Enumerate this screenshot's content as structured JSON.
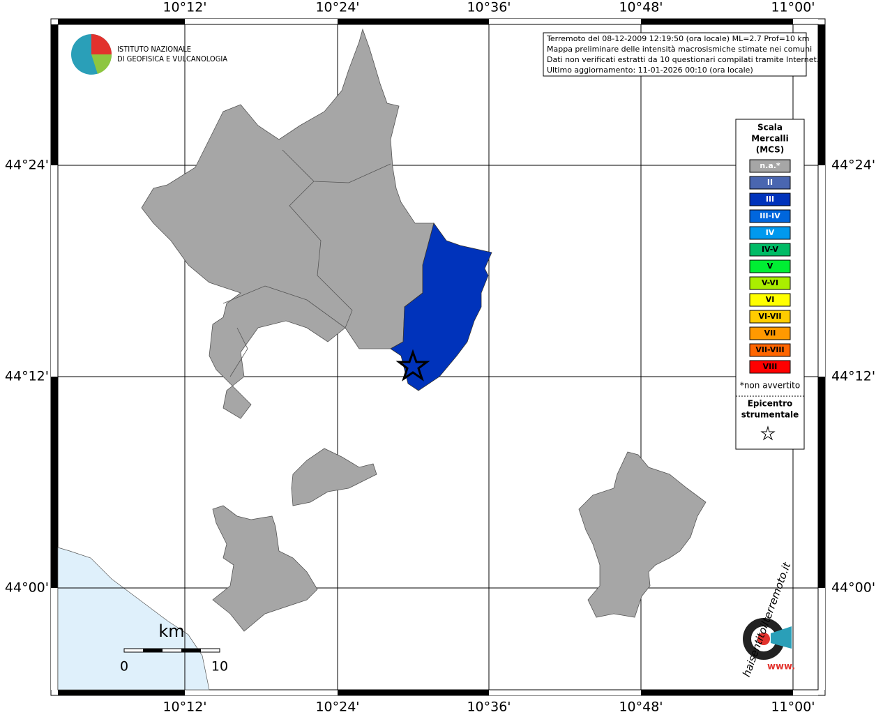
{
  "header": {
    "lines": [
      "Terremoto del 08-12-2009 12:19:50 (ora locale) ML=2.7 Prof=10 km",
      "Mappa preliminare delle intensità macrosismiche stimate nei comuni",
      "Dati non verificati estratti da 10 questionari compilati tramite Internet.",
      "Ultimo aggiornamento: 11-01-2026 00:10 (ora locale)"
    ]
  },
  "logo": {
    "lines": [
      "ISTITUTO NAZIONALE",
      "DI GEOFISICA E VULCANOLOGIA"
    ]
  },
  "map": {
    "lon_labels": [
      "10°12'",
      "10°24'",
      "10°36'",
      "10°48'",
      "11°00'"
    ],
    "lat_labels": [
      "44°24'",
      "44°12'",
      "44°00'"
    ]
  },
  "legend": {
    "title": [
      "Scala",
      "Mercalli",
      "(MCS)"
    ],
    "items": [
      {
        "label": "n.a.*",
        "color": "#a6a6a6"
      },
      {
        "label": "II",
        "color": "#4a66b0"
      },
      {
        "label": "III",
        "color": "#0033bb"
      },
      {
        "label": "III-IV",
        "color": "#0066dd"
      },
      {
        "label": "IV",
        "color": "#0099ee"
      },
      {
        "label": "IV-V",
        "color": "#00bb66"
      },
      {
        "label": "V",
        "color": "#00ee33"
      },
      {
        "label": "V-VI",
        "color": "#aaee00"
      },
      {
        "label": "VI",
        "color": "#ffff00"
      },
      {
        "label": "VI-VII",
        "color": "#ffcc00"
      },
      {
        "label": "VII",
        "color": "#ff9900"
      },
      {
        "label": "VII-VIII",
        "color": "#ff6600"
      },
      {
        "label": "VIII",
        "color": "#ff0000"
      }
    ],
    "note": "*non avvertito",
    "epicenter": [
      "Epicentro",
      "strumentale"
    ]
  },
  "scale": {
    "unit": "km",
    "ticks": [
      "0",
      "10"
    ]
  },
  "site_logo": {
    "text": "haisentitoilterremoto.it",
    "www": "www."
  }
}
